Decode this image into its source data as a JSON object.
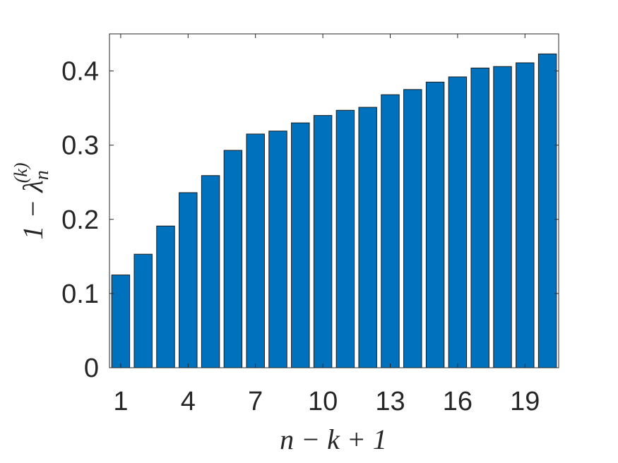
{
  "chart_data": {
    "type": "bar",
    "title": "",
    "xlabel": "n − k + 1",
    "ylabel": {
      "prefix": "1 − ",
      "symbol": "λ",
      "subscript": "n",
      "superscript": "(k)"
    },
    "categories": [
      1,
      2,
      3,
      4,
      5,
      6,
      7,
      8,
      9,
      10,
      11,
      12,
      13,
      14,
      15,
      16,
      17,
      18,
      19,
      20
    ],
    "values": [
      0.125,
      0.153,
      0.191,
      0.236,
      0.259,
      0.293,
      0.315,
      0.319,
      0.33,
      0.34,
      0.347,
      0.351,
      0.368,
      0.375,
      0.385,
      0.392,
      0.404,
      0.406,
      0.411,
      0.423
    ],
    "xlim": [
      0.5,
      20.5
    ],
    "ylim": [
      0,
      0.45
    ],
    "xticks": [
      1,
      4,
      7,
      10,
      13,
      16,
      19
    ],
    "xtick_labels": [
      "1",
      "4",
      "7",
      "10",
      "13",
      "16",
      "19"
    ],
    "yticks": [
      0,
      0.1,
      0.2,
      0.3,
      0.4
    ],
    "ytick_labels": [
      "0",
      "0.1",
      "0.2",
      "0.3",
      "0.4"
    ],
    "grid": false,
    "legend": "none",
    "bar_color": "#0072BD",
    "edge_color": "#1a1a1a",
    "axis_color": "#262626"
  }
}
